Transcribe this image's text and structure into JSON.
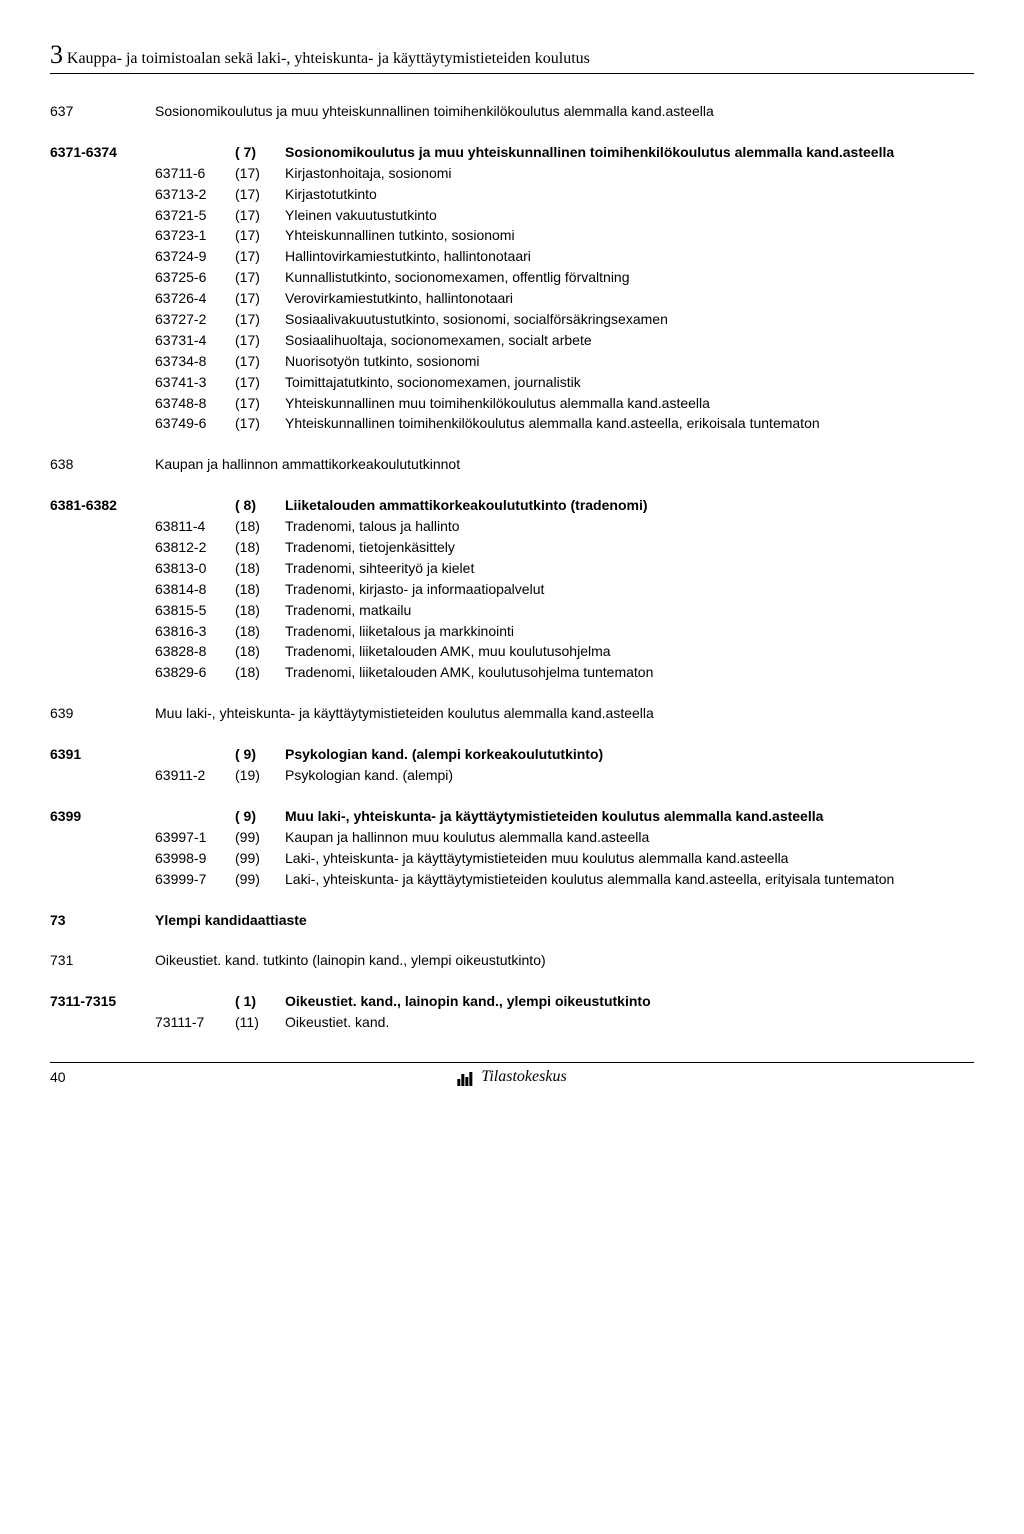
{
  "chapter": {
    "num": "3",
    "title": "Kauppa- ja toimistoalan sekä laki-, yhteiskunta- ja käyttäytymistieteiden koulutus"
  },
  "s637": {
    "code": "637",
    "desc": "Sosionomikoulutus ja muu yhteiskunnallinen toimihenkilökoulutus alemmalla kand.asteella"
  },
  "s6371": {
    "code": "6371-6374",
    "paren": "( 7)",
    "desc": "Sosionomikoulutus ja muu yhteiskunnallinen toimihenkilökoulutus alemmalla kand.asteella",
    "rows": [
      {
        "c": "63711-6",
        "p": "(17)",
        "d": "Kirjastonhoitaja, sosionomi"
      },
      {
        "c": "63713-2",
        "p": "(17)",
        "d": "Kirjastotutkinto"
      },
      {
        "c": "63721-5",
        "p": "(17)",
        "d": "Yleinen vakuutustutkinto"
      },
      {
        "c": "63723-1",
        "p": "(17)",
        "d": "Yhteiskunnallinen tutkinto, sosionomi"
      },
      {
        "c": "63724-9",
        "p": "(17)",
        "d": "Hallintovirkamiestutkinto, hallintonotaari"
      },
      {
        "c": "63725-6",
        "p": "(17)",
        "d": "Kunnallistutkinto, socionomexamen, offentlig förvaltning"
      },
      {
        "c": "63726-4",
        "p": "(17)",
        "d": "Verovirkamiestutkinto, hallintonotaari"
      },
      {
        "c": "63727-2",
        "p": "(17)",
        "d": "Sosiaalivakuutustutkinto, sosionomi, socialförsäkringsexamen"
      },
      {
        "c": "63731-4",
        "p": "(17)",
        "d": "Sosiaalihuoltaja, socionomexamen, socialt arbete"
      },
      {
        "c": "63734-8",
        "p": "(17)",
        "d": "Nuorisotyön tutkinto, sosionomi"
      },
      {
        "c": "63741-3",
        "p": "(17)",
        "d": "Toimittajatutkinto, socionomexamen, journalistik"
      },
      {
        "c": "63748-8",
        "p": "(17)",
        "d": "Yhteiskunnallinen muu toimihenkilökoulutus alemmalla kand.asteella"
      },
      {
        "c": "63749-6",
        "p": "(17)",
        "d": "Yhteiskunnallinen toimihenkilökoulutus alemmalla kand.asteella, erikoisala tuntematon"
      }
    ]
  },
  "s638": {
    "code": "638",
    "desc": "Kaupan ja hallinnon ammattikorkeakoulututkinnot"
  },
  "s6381": {
    "code": "6381-6382",
    "paren": "( 8)",
    "desc": "Liiketalouden ammattikorkeakoulututkinto (tradenomi)",
    "rows": [
      {
        "c": "63811-4",
        "p": "(18)",
        "d": "Tradenomi, talous ja hallinto"
      },
      {
        "c": "63812-2",
        "p": "(18)",
        "d": "Tradenomi, tietojenkäsittely"
      },
      {
        "c": "63813-0",
        "p": "(18)",
        "d": "Tradenomi, sihteerityö ja kielet"
      },
      {
        "c": "63814-8",
        "p": "(18)",
        "d": "Tradenomi, kirjasto- ja informaatiopalvelut"
      },
      {
        "c": "63815-5",
        "p": "(18)",
        "d": "Tradenomi, matkailu"
      },
      {
        "c": "63816-3",
        "p": "(18)",
        "d": "Tradenomi, liiketalous ja markkinointi"
      },
      {
        "c": "63828-8",
        "p": "(18)",
        "d": "Tradenomi, liiketalouden AMK, muu koulutusohjelma"
      },
      {
        "c": "63829-6",
        "p": "(18)",
        "d": "Tradenomi, liiketalouden AMK, koulutusohjelma tuntematon"
      }
    ]
  },
  "s639": {
    "code": "639",
    "desc": "Muu laki-, yhteiskunta- ja käyttäytymistieteiden koulutus alemmalla kand.asteella"
  },
  "s6391": {
    "code": "6391",
    "paren": "( 9)",
    "desc": "Psykologian kand. (alempi korkeakoulututkinto)",
    "rows": [
      {
        "c": "63911-2",
        "p": "(19)",
        "d": "Psykologian kand. (alempi)"
      }
    ]
  },
  "s6399": {
    "code": "6399",
    "paren": "( 9)",
    "desc": "Muu laki-, yhteiskunta- ja käyttäytymistieteiden koulutus alemmalla kand.asteella",
    "rows": [
      {
        "c": "63997-1",
        "p": "(99)",
        "d": "Kaupan ja hallinnon muu koulutus alemmalla kand.asteella"
      },
      {
        "c": "63998-9",
        "p": "(99)",
        "d": "Laki-, yhteiskunta- ja käyttäytymistieteiden muu koulutus alemmalla kand.asteella"
      },
      {
        "c": "63999-7",
        "p": "(99)",
        "d": "Laki-, yhteiskunta- ja käyttäytymistieteiden koulutus alemmalla kand.asteella, erityisala tuntematon"
      }
    ]
  },
  "s73": {
    "code": "73",
    "desc": "Ylempi kandidaattiaste"
  },
  "s731": {
    "code": "731",
    "desc": "Oikeustiet. kand. tutkinto (lainopin kand., ylempi oikeustutkinto)"
  },
  "s7311": {
    "code": "7311-7315",
    "paren": "( 1)",
    "desc": "Oikeustiet. kand., lainopin kand., ylempi oikeustutkinto",
    "rows": [
      {
        "c": "73111-7",
        "p": "(11)",
        "d": "Oikeustiet. kand."
      }
    ]
  },
  "footer": {
    "page": "40",
    "publisher": "Tilastokeskus"
  }
}
